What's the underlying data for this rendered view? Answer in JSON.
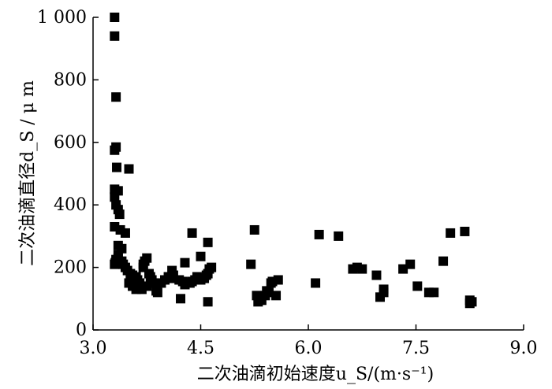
{
  "chart_data": {
    "type": "scatter",
    "title": "",
    "xlabel": "二次油滴初始速度u_S/(m·s⁻¹)",
    "ylabel": "二次油滴直径d_S / μ m",
    "xlim": [
      3.0,
      9.0
    ],
    "ylim": [
      0,
      1000
    ],
    "x_ticks": [
      3.0,
      4.5,
      6.0,
      7.5,
      9.0
    ],
    "x_tick_labels": [
      "3.0",
      "4.5",
      "6.0",
      "7.5",
      "9.0"
    ],
    "y_ticks": [
      0,
      200,
      400,
      600,
      800,
      1000
    ],
    "y_tick_labels": [
      "0",
      "200",
      "400",
      "600",
      "800",
      "1 000"
    ],
    "grid": false,
    "marker": "square",
    "color": "#000000",
    "series": [
      {
        "x": [
          3.3,
          3.32,
          3.3,
          3.32,
          3.33,
          3.3,
          3.35,
          3.3,
          3.32,
          3.35,
          3.37,
          3.3,
          3.31,
          3.32,
          3.3,
          3.32,
          3.35,
          3.38,
          3.5,
          3.3,
          3.35,
          3.4,
          3.35,
          3.4,
          3.42,
          3.45,
          3.48,
          3.52,
          3.55,
          3.6,
          3.62,
          3.65,
          3.65,
          3.7,
          3.7,
          3.72,
          3.75,
          3.78,
          3.8,
          3.82,
          3.85,
          3.5,
          3.55,
          3.6,
          3.68,
          3.75,
          3.82,
          3.88,
          3.9,
          3.95,
          4.0,
          4.05,
          4.08,
          4.12,
          4.2,
          4.25,
          4.28,
          4.35,
          4.38,
          4.42,
          4.45,
          4.5,
          4.55,
          4.58,
          4.6,
          4.62,
          4.65,
          4.6,
          4.6,
          4.22,
          4.38,
          4.5,
          5.2,
          5.25,
          5.28,
          5.3,
          5.35,
          5.4,
          5.42,
          5.45,
          5.48,
          5.5,
          5.55,
          5.58,
          6.1,
          6.15,
          6.42,
          6.62,
          6.68,
          6.75,
          6.95,
          7.0,
          7.05,
          7.05,
          7.32,
          7.42,
          7.52,
          7.68,
          7.75,
          7.88,
          7.98,
          8.18,
          8.25,
          8.28,
          8.25,
          4.1,
          4.28,
          3.45
        ],
        "y": [
          940,
          745,
          575,
          585,
          520,
          450,
          445,
          425,
          400,
          385,
          370,
          330,
          215,
          212,
          210,
          225,
          230,
          320,
          515,
          1000,
          270,
          260,
          240,
          220,
          210,
          200,
          190,
          180,
          175,
          170,
          160,
          150,
          140,
          200,
          210,
          220,
          230,
          180,
          170,
          160,
          150,
          150,
          140,
          130,
          130,
          140,
          150,
          125,
          120,
          150,
          160,
          170,
          165,
          175,
          160,
          155,
          145,
          150,
          155,
          160,
          170,
          160,
          165,
          175,
          180,
          195,
          200,
          280,
          90,
          100,
          310,
          235,
          210,
          320,
          110,
          90,
          95,
          110,
          125,
          120,
          150,
          155,
          110,
          160,
          150,
          305,
          300,
          195,
          200,
          195,
          175,
          105,
          130,
          120,
          195,
          210,
          140,
          120,
          120,
          220,
          310,
          315,
          95,
          90,
          85,
          190,
          215,
          310
        ],
        "__note_removed": null
      }
    ]
  }
}
